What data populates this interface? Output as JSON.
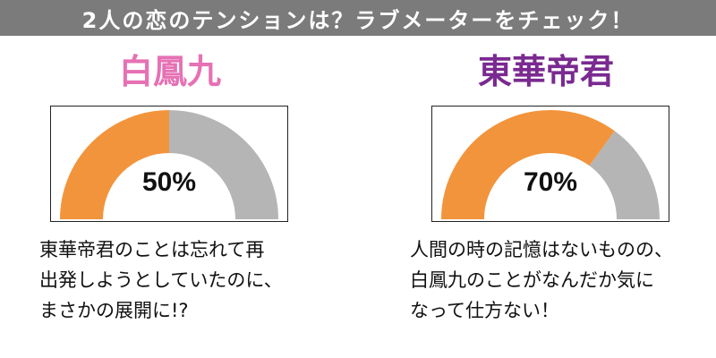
{
  "header": {
    "title": "2人の恋のテンションは？ラブメーターをチェック！"
  },
  "colors": {
    "banner_bg": "#7b7b7b",
    "left_name": "#e671b4",
    "right_name": "#7a2a90",
    "gauge_fill": "#f2943c",
    "gauge_rest": "#b5b5b5"
  },
  "left": {
    "name": "白鳳九",
    "meter_value": 50,
    "meter_label": "50%",
    "lines": [
      "東華帝君のことは忘れて再",
      "出発しようとしていたのに、",
      "まさかの展開に!?"
    ]
  },
  "right": {
    "name": "東華帝君",
    "meter_value": 70,
    "meter_label": "70%",
    "lines": [
      "人間の時の記憶はないものの、",
      "白鳳九のことがなんだか気に",
      "なって仕方ない！"
    ]
  }
}
